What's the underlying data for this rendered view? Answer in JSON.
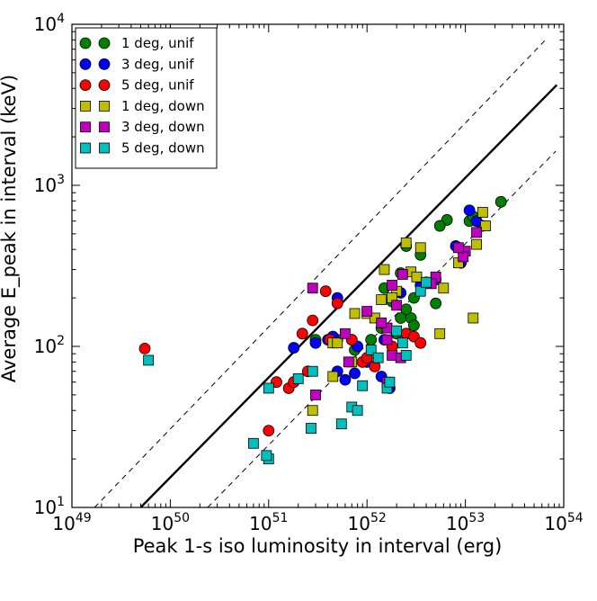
{
  "chart_data": {
    "type": "scatter",
    "xlabel": "Peak 1-s iso luminosity in interval (erg)",
    "ylabel": "Average E_peak in interval (keV)",
    "xscale": "log",
    "yscale": "log",
    "xlim": [
      1e+49,
      1e+54
    ],
    "ylim": [
      10,
      10000
    ],
    "x_ticks": [
      {
        "value": 1e+49,
        "base": "10",
        "exp": "49"
      },
      {
        "value": 1e+50,
        "base": "10",
        "exp": "50"
      },
      {
        "value": 1e+51,
        "base": "10",
        "exp": "51"
      },
      {
        "value": 1e+52,
        "base": "10",
        "exp": "52"
      },
      {
        "value": 1e+53,
        "base": "10",
        "exp": "53"
      },
      {
        "value": 1e+54,
        "base": "10",
        "exp": "54"
      }
    ],
    "y_ticks": [
      {
        "value": 10,
        "base": "10",
        "exp": "1"
      },
      {
        "value": 100,
        "base": "10",
        "exp": "2"
      },
      {
        "value": 1000,
        "base": "10",
        "exp": "3"
      },
      {
        "value": 10000,
        "base": "10",
        "exp": "4"
      }
    ],
    "grid": false,
    "legend_position": "top-left",
    "lines": [
      {
        "style": "solid",
        "x": [
          5e+49,
          8.5e+53
        ],
        "y": [
          10,
          4200
        ]
      },
      {
        "style": "dashed",
        "x": [
          1.7e+49,
          6.4e+53
        ],
        "y": [
          10,
          7900
        ]
      },
      {
        "style": "dashed",
        "x": [
          2.4e+50,
          8.3e+53
        ],
        "y": [
          10,
          1630
        ]
      }
    ],
    "series": [
      {
        "name": "1 deg, unif",
        "marker": "circle",
        "color": "#008000",
        "points": [
          [
            2.3e+53,
            790
          ],
          [
            1.5e+53,
            560
          ],
          [
            1.1e+53,
            600
          ],
          [
            6.5e+52,
            610
          ],
          [
            5.5e+52,
            560
          ],
          [
            2.5e+52,
            420
          ],
          [
            3.5e+52,
            370
          ],
          [
            1.2e+53,
            640
          ],
          [
            2.8e+52,
            150
          ],
          [
            3e+52,
            135
          ],
          [
            2.5e+52,
            170
          ],
          [
            2.2e+52,
            150
          ],
          [
            1.8e+52,
            190
          ],
          [
            1.4e+52,
            130
          ],
          [
            3e+52,
            200
          ],
          [
            5e+52,
            185
          ],
          [
            4e+52,
            250
          ],
          [
            2e+52,
            120
          ],
          [
            1.1e+52,
            110
          ],
          [
            7.5e+51,
            95
          ],
          [
            5e+51,
            110
          ],
          [
            4.5e+51,
            115
          ],
          [
            3e+51,
            110
          ],
          [
            1.5e+52,
            230
          ],
          [
            2.2e+52,
            285
          ],
          [
            7e+51,
            110
          ]
        ]
      },
      {
        "name": "3 deg, unif",
        "marker": "circle",
        "color": "#0000ff",
        "points": [
          [
            1.1e+53,
            700
          ],
          [
            1.3e+53,
            600
          ],
          [
            9e+52,
            330
          ],
          [
            8e+52,
            420
          ],
          [
            5e+52,
            260
          ],
          [
            3.5e+52,
            240
          ],
          [
            2.2e+52,
            215
          ],
          [
            4.5e+51,
            115
          ],
          [
            5e+51,
            200
          ],
          [
            4e+51,
            110
          ],
          [
            3e+51,
            105
          ],
          [
            1.8e+51,
            98
          ],
          [
            5e+51,
            70
          ],
          [
            6e+51,
            62
          ],
          [
            7.5e+51,
            68
          ],
          [
            8e+51,
            100
          ],
          [
            1e+52,
            80
          ],
          [
            1.5e+52,
            110
          ],
          [
            1.4e+52,
            65
          ],
          [
            1.7e+52,
            55
          ]
        ]
      },
      {
        "name": "5 deg, unif",
        "marker": "circle",
        "color": "#ff0000",
        "points": [
          [
            5.5e+49,
            97
          ],
          [
            1.2e+51,
            60
          ],
          [
            1.6e+51,
            55
          ],
          [
            1.8e+51,
            60
          ],
          [
            2.2e+51,
            120
          ],
          [
            2.5e+51,
            70
          ],
          [
            2.8e+51,
            145
          ],
          [
            4.2e+51,
            110
          ],
          [
            3.8e+51,
            220
          ],
          [
            5e+51,
            185
          ],
          [
            7e+51,
            110
          ],
          [
            9e+51,
            80
          ],
          [
            1e+52,
            85
          ],
          [
            1.2e+52,
            75
          ],
          [
            1.8e+52,
            100
          ],
          [
            2.5e+52,
            120
          ],
          [
            3e+52,
            115
          ],
          [
            3.5e+52,
            105
          ],
          [
            1e+51,
            30
          ]
        ]
      },
      {
        "name": "1 deg, down",
        "marker": "square",
        "color": "#bfbf00",
        "points": [
          [
            1.5e+53,
            680
          ],
          [
            1.6e+53,
            560
          ],
          [
            1.3e+53,
            430
          ],
          [
            8.5e+52,
            330
          ],
          [
            6e+52,
            230
          ],
          [
            5.5e+52,
            120
          ],
          [
            1.2e+53,
            150
          ],
          [
            3.5e+52,
            410
          ],
          [
            2.5e+52,
            440
          ],
          [
            2.8e+52,
            290
          ],
          [
            3.2e+52,
            270
          ],
          [
            2e+52,
            220
          ],
          [
            1.5e+52,
            300
          ],
          [
            1.8e+52,
            200
          ],
          [
            1.4e+52,
            195
          ],
          [
            1e+52,
            160
          ],
          [
            7.5e+51,
            160
          ],
          [
            1.2e+52,
            150
          ],
          [
            4.5e+51,
            105
          ],
          [
            5e+51,
            105
          ],
          [
            4.5e+51,
            65
          ],
          [
            7e+51,
            80
          ],
          [
            2.8e+51,
            40
          ]
        ]
      },
      {
        "name": "3 deg, down",
        "marker": "square",
        "color": "#bf00bf",
        "points": [
          [
            1.3e+53,
            510
          ],
          [
            1e+53,
            390
          ],
          [
            9.5e+52,
            360
          ],
          [
            8.5e+52,
            410
          ],
          [
            5e+52,
            270
          ],
          [
            4.5e+52,
            245
          ],
          [
            2.3e+52,
            280
          ],
          [
            1.8e+52,
            240
          ],
          [
            2e+52,
            180
          ],
          [
            1.6e+52,
            130
          ],
          [
            1.4e+52,
            140
          ],
          [
            1e+52,
            165
          ],
          [
            1.6e+52,
            110
          ],
          [
            6e+51,
            120
          ],
          [
            1.8e+52,
            88
          ],
          [
            2.2e+52,
            85
          ],
          [
            1.6e+52,
            60
          ],
          [
            6.5e+51,
            80
          ],
          [
            3e+51,
            50
          ],
          [
            2.8e+51,
            230
          ]
        ]
      },
      {
        "name": "5 deg, down",
        "marker": "square",
        "color": "#00bfbf",
        "points": [
          [
            6e+49,
            82
          ],
          [
            1e+51,
            55
          ],
          [
            7e+50,
            25
          ],
          [
            1e+51,
            20
          ],
          [
            9.5e+50,
            21
          ],
          [
            2e+51,
            63
          ],
          [
            2.7e+51,
            31
          ],
          [
            2.8e+51,
            70
          ],
          [
            5.5e+51,
            33
          ],
          [
            7e+51,
            42
          ],
          [
            8e+51,
            40
          ],
          [
            9e+51,
            57
          ],
          [
            1.1e+52,
            95
          ],
          [
            1.3e+52,
            85
          ],
          [
            1.6e+52,
            55
          ],
          [
            1.7e+52,
            60
          ],
          [
            2.3e+52,
            105
          ],
          [
            2.5e+52,
            88
          ],
          [
            3.5e+52,
            220
          ],
          [
            4e+52,
            250
          ],
          [
            2e+52,
            125
          ]
        ]
      }
    ]
  }
}
